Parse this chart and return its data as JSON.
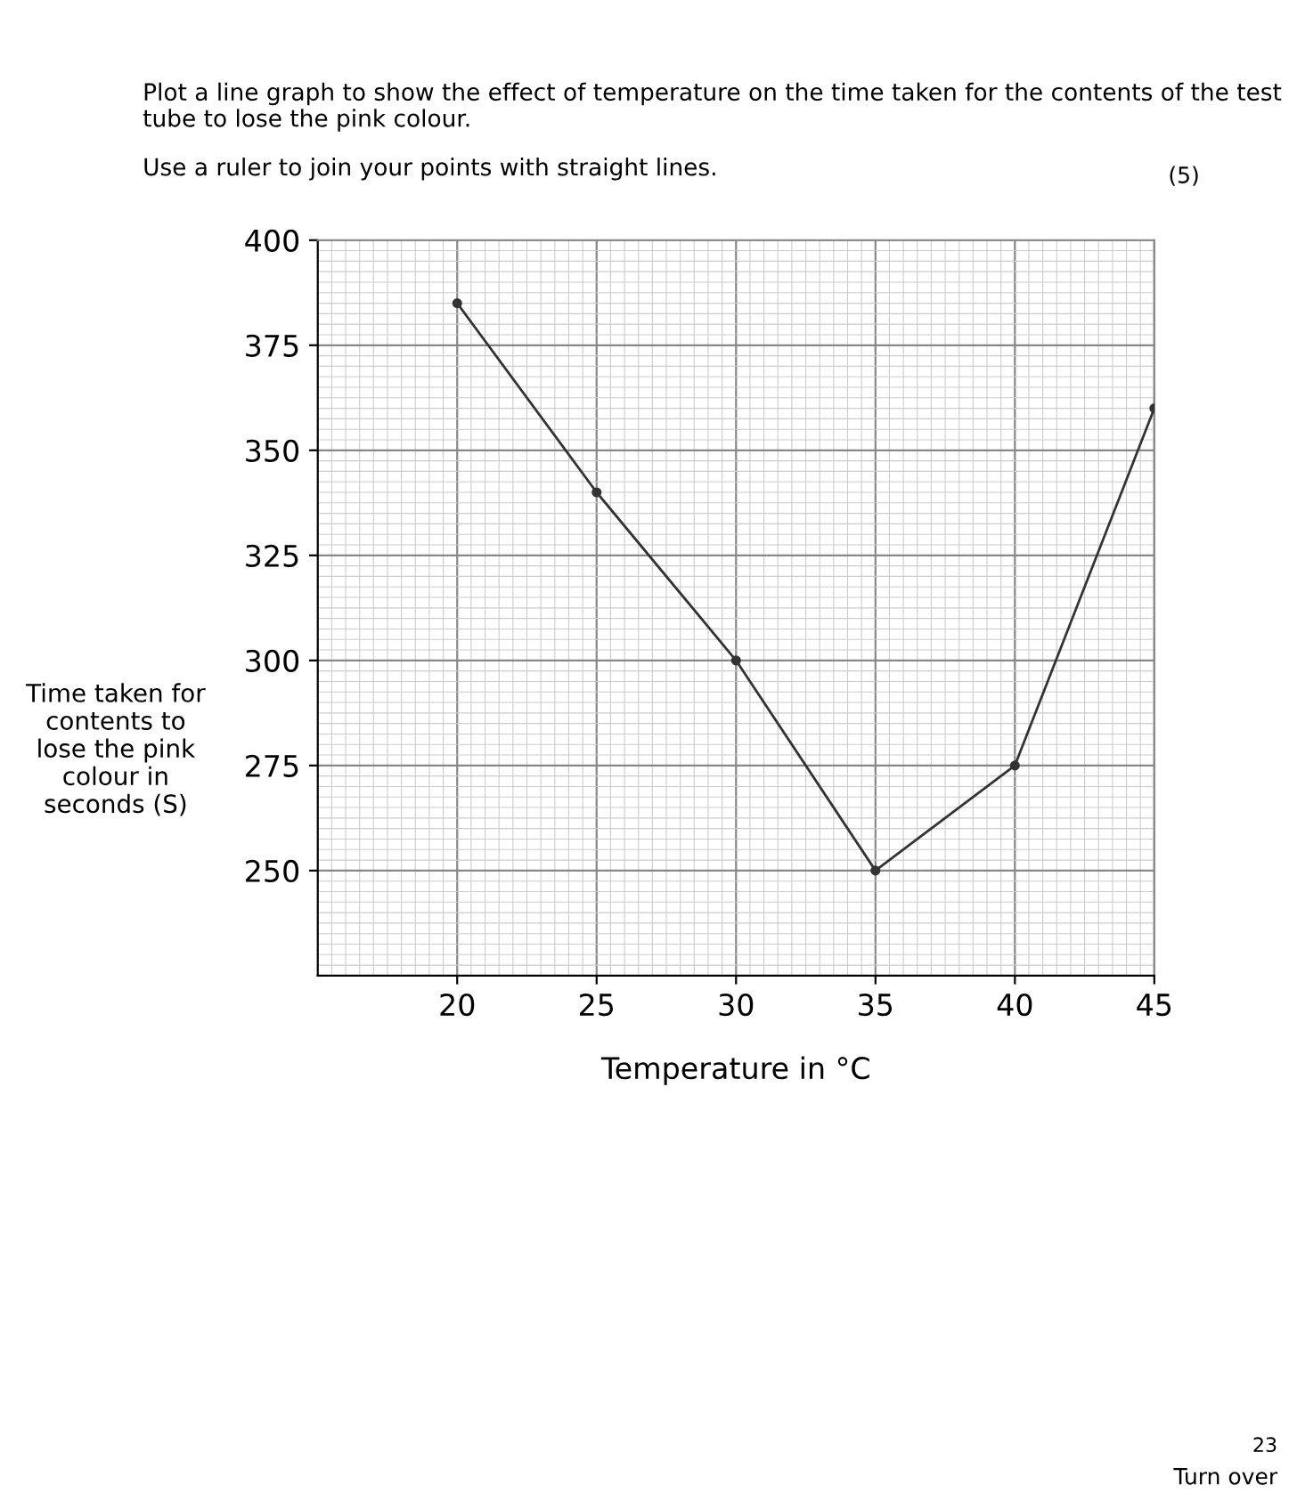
{
  "chart_data": {
    "type": "line",
    "title": "Plot a line graph to show the effect of temperature on the time taken for the contents of the test tube to lose the pink colour.",
    "subtitle": "Use a ruler to join your points with straight lines.",
    "annotations": [
      "(5)",
      "23",
      "Turn over"
    ],
    "xlabel": "Temperature in °C",
    "ylabel": "Time taken for contents to lose the pink colour in seconds (S)",
    "x": [
      20,
      25,
      30,
      35,
      40,
      45
    ],
    "series": [
      {
        "color": "#333333",
        "values": [
          385,
          340,
          300,
          250,
          275,
          360
        ]
      }
    ],
    "xlim": [
      15,
      45
    ],
    "xticks": [
      20,
      25,
      30,
      35,
      40,
      45
    ],
    "ylim": [
      225,
      400
    ],
    "yticks": [
      250,
      275,
      300,
      325,
      350,
      375,
      400
    ],
    "grid": true,
    "marker": "circle",
    "line_style": "solid"
  }
}
